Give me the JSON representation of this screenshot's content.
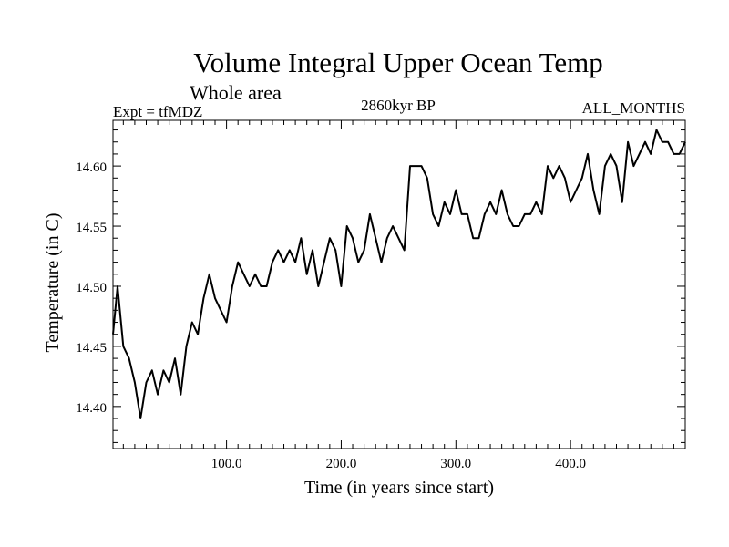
{
  "chart_data": {
    "type": "line",
    "title": "Volume Integral Upper Ocean Temp",
    "subtitle": "Whole area",
    "experiment_label": "Expt = tfMDZ",
    "period_label": "2860kyr BP",
    "months_label": "ALL_MONTHS",
    "xlabel": "Time (in years since start)",
    "ylabel": "Temperature (in C)",
    "xlim": [
      1,
      500
    ],
    "ylim": [
      14.365,
      14.638
    ],
    "x_ticks": [
      100,
      200,
      300,
      400
    ],
    "x_tick_labels": [
      "100.0",
      "200.0",
      "300.0",
      "400.0"
    ],
    "y_ticks": [
      14.4,
      14.45,
      14.5,
      14.55,
      14.6
    ],
    "y_tick_labels": [
      "14.40",
      "14.45",
      "14.50",
      "14.55",
      "14.60"
    ],
    "grid": false,
    "series": [
      {
        "name": "Volume integral upper ocean temperature",
        "x": [
          1,
          5,
          10,
          15,
          20,
          25,
          30,
          35,
          40,
          45,
          50,
          55,
          60,
          65,
          70,
          75,
          80,
          85,
          90,
          95,
          100,
          105,
          110,
          115,
          120,
          125,
          130,
          135,
          140,
          145,
          150,
          155,
          160,
          165,
          170,
          175,
          180,
          185,
          190,
          195,
          200,
          205,
          210,
          215,
          220,
          225,
          230,
          235,
          240,
          245,
          250,
          255,
          260,
          265,
          270,
          275,
          280,
          285,
          290,
          295,
          300,
          305,
          310,
          315,
          320,
          325,
          330,
          335,
          340,
          345,
          350,
          355,
          360,
          365,
          370,
          375,
          380,
          385,
          390,
          395,
          400,
          405,
          410,
          415,
          420,
          425,
          430,
          435,
          440,
          445,
          450,
          455,
          460,
          465,
          470,
          475,
          480,
          485,
          490,
          495,
          500
        ],
        "values": [
          14.46,
          14.5,
          14.45,
          14.44,
          14.42,
          14.39,
          14.42,
          14.43,
          14.41,
          14.43,
          14.42,
          14.44,
          14.41,
          14.45,
          14.47,
          14.46,
          14.49,
          14.51,
          14.49,
          14.48,
          14.47,
          14.5,
          14.52,
          14.51,
          14.5,
          14.51,
          14.5,
          14.5,
          14.52,
          14.53,
          14.52,
          14.53,
          14.52,
          14.54,
          14.51,
          14.53,
          14.5,
          14.52,
          14.54,
          14.53,
          14.5,
          14.55,
          14.54,
          14.52,
          14.53,
          14.56,
          14.54,
          14.52,
          14.54,
          14.55,
          14.54,
          14.53,
          14.6,
          14.6,
          14.6,
          14.59,
          14.56,
          14.55,
          14.57,
          14.56,
          14.58,
          14.56,
          14.56,
          14.54,
          14.54,
          14.56,
          14.57,
          14.56,
          14.58,
          14.56,
          14.55,
          14.55,
          14.56,
          14.56,
          14.57,
          14.56,
          14.6,
          14.59,
          14.6,
          14.59,
          14.57,
          14.58,
          14.59,
          14.61,
          14.58,
          14.56,
          14.6,
          14.61,
          14.6,
          14.57,
          14.62,
          14.6,
          14.61,
          14.62,
          14.61,
          14.63,
          14.62,
          14.62,
          14.61,
          14.61,
          14.62
        ]
      }
    ]
  }
}
